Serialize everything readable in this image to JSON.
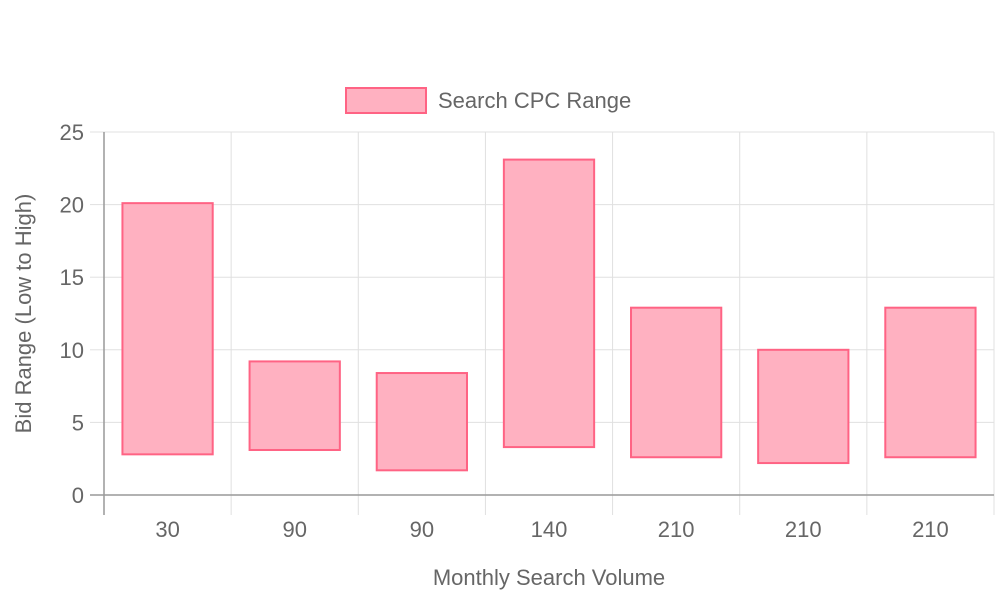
{
  "chart_data": {
    "type": "bar",
    "subtype": "floating-range",
    "categories": [
      "30",
      "90",
      "90",
      "140",
      "210",
      "210",
      "210"
    ],
    "series": [
      {
        "name": "Search CPC Range",
        "ranges": [
          [
            2.8,
            20.1
          ],
          [
            3.1,
            9.2
          ],
          [
            1.7,
            8.4
          ],
          [
            3.3,
            23.1
          ],
          [
            2.6,
            12.9
          ],
          [
            2.2,
            10.0
          ],
          [
            2.6,
            12.9
          ]
        ]
      }
    ],
    "xlabel": "Monthly Search Volume",
    "ylabel": "Bid Range (Low to High)",
    "ylim": [
      0,
      25
    ],
    "yticks": [
      0,
      5,
      10,
      15,
      20,
      25
    ],
    "grid": true,
    "legend_position": "top",
    "colors": {
      "fill": "#ffb1c1",
      "border": "#ff6384",
      "grid": "#e0e0e0",
      "axis": "#999999",
      "text": "#666666"
    }
  }
}
